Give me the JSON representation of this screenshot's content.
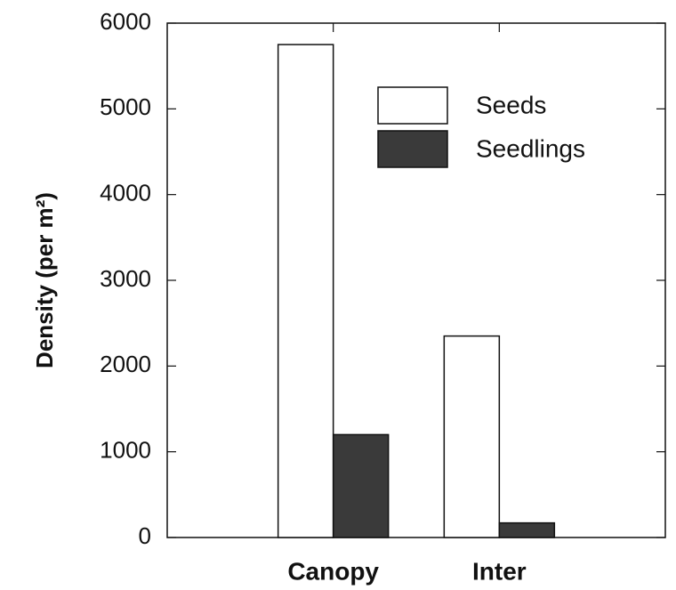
{
  "chart_data": {
    "type": "bar",
    "y_label": "Density (per m²)",
    "categories": [
      "Canopy",
      "Inter"
    ],
    "series": [
      {
        "name": "Seeds",
        "color": "#ffffff",
        "values": [
          5750,
          2350
        ]
      },
      {
        "name": "Seedlings",
        "color": "#3a3a3a",
        "values": [
          1200,
          170
        ]
      }
    ],
    "ylim": [
      0,
      6000
    ],
    "yticks": [
      0,
      1000,
      2000,
      3000,
      4000,
      5000,
      6000
    ],
    "grid": false,
    "legend": "upper right"
  }
}
